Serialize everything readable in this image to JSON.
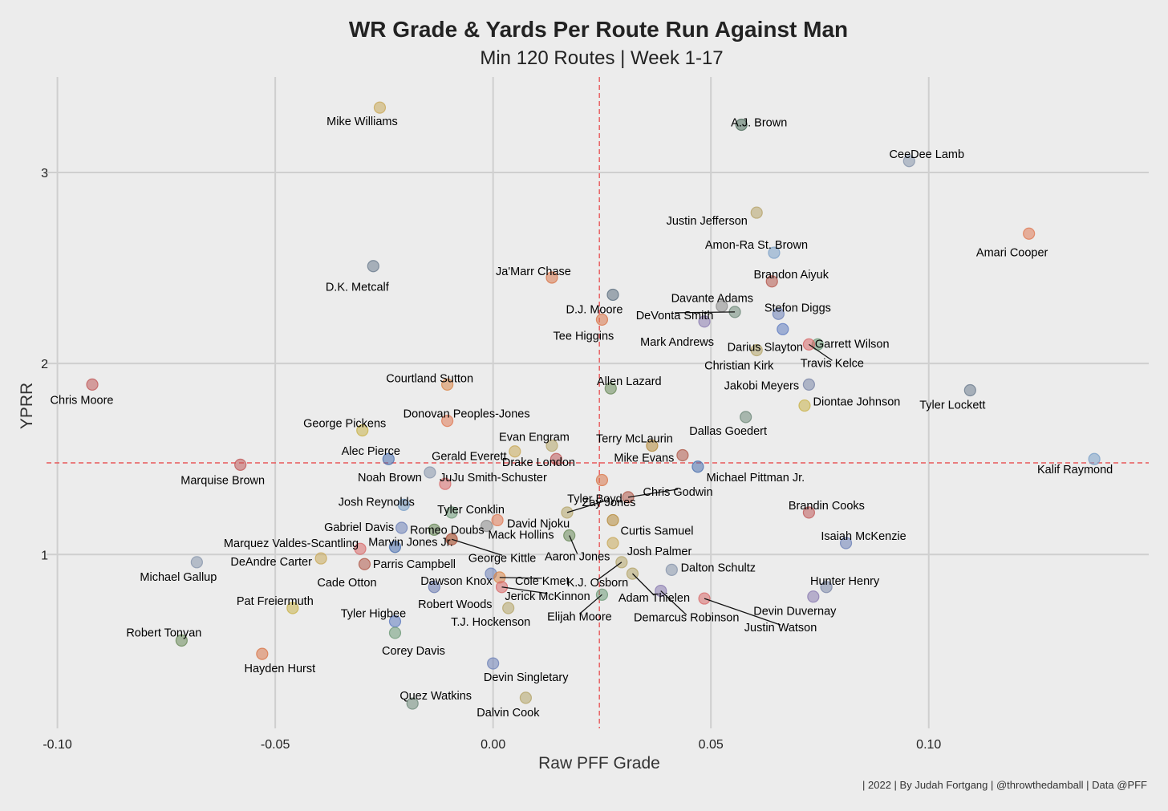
{
  "chart_data": {
    "type": "scatter",
    "title": "WR Grade & Yards Per Route Run Against Man",
    "subtitle": "Min 120 Routes | Week 1-17",
    "xlabel": "Raw PFF Grade",
    "ylabel": "YPRR",
    "caption": "| 2022 | By Judah Fortgang | @throwthedamball | Data @PFF",
    "xlim": [
      -0.1025,
      0.1505
    ],
    "ylim": [
      0.09,
      3.5
    ],
    "xticks": [
      -0.1,
      -0.05,
      0.0,
      0.05,
      0.1
    ],
    "xtick_labels": [
      "-0.10",
      "-0.05",
      "0.00",
      "0.05",
      "0.10"
    ],
    "yticks": [
      1,
      2,
      3
    ],
    "ytick_labels": [
      "1",
      "2",
      "3"
    ],
    "grid": true,
    "ref_lines": {
      "x": 0.0244,
      "y": 1.48,
      "color": "#e8585a"
    },
    "points": [
      {
        "name": "Mike Williams",
        "x": -0.026,
        "y": 3.34,
        "color": "#c9a95a"
      },
      {
        "name": "A.J. Brown",
        "x": 0.057,
        "y": 3.25,
        "color": "#4d6b5b"
      },
      {
        "name": "CeeDee Lamb",
        "x": 0.0955,
        "y": 3.06,
        "color": "#8795ab"
      },
      {
        "name": "Justin Jefferson",
        "x": 0.0605,
        "y": 2.79,
        "color": "#b7a46a"
      },
      {
        "name": "Amari Cooper",
        "x": 0.123,
        "y": 2.68,
        "color": "#e07a55"
      },
      {
        "name": "Amon-Ra St. Brown",
        "x": 0.0645,
        "y": 2.58,
        "color": "#7aa0c8"
      },
      {
        "name": "D.K. Metcalf",
        "x": -0.0275,
        "y": 2.51,
        "color": "#6d7d8f"
      },
      {
        "name": "Ja'Marr Chase",
        "x": 0.0135,
        "y": 2.45,
        "color": "#d9774a"
      },
      {
        "name": "Brandon Aiyuk",
        "x": 0.064,
        "y": 2.43,
        "color": "#b5584d"
      },
      {
        "name": "D.J. Moore",
        "x": 0.0275,
        "y": 2.36,
        "color": "#5d6f80"
      },
      {
        "name": "Davante Adams",
        "x": 0.0525,
        "y": 2.3,
        "color": "#8b8b8b"
      },
      {
        "name": "DeVonta Smith",
        "x": 0.0555,
        "y": 2.27,
        "color": "#6f8a7a"
      },
      {
        "name": "Stefon Diggs",
        "x": 0.0655,
        "y": 2.26,
        "color": "#6e82b8"
      },
      {
        "name": "Tee Higgins",
        "x": 0.025,
        "y": 2.23,
        "color": "#d9774a"
      },
      {
        "name": "Mark Andrews",
        "x": 0.0485,
        "y": 2.22,
        "color": "#8a7bb0"
      },
      {
        "name": "Darius Slayton",
        "x": 0.0665,
        "y": 2.18,
        "color": "#5f7cc0"
      },
      {
        "name": "Garrett Wilson",
        "x": 0.0745,
        "y": 2.1,
        "color": "#6e9a78"
      },
      {
        "name": "Travis Kelce",
        "x": 0.0725,
        "y": 2.1,
        "color": "#d86a6a"
      },
      {
        "name": "Christian Kirk",
        "x": 0.0605,
        "y": 2.07,
        "color": "#b5a56a"
      },
      {
        "name": "Courtland Sutton",
        "x": -0.0105,
        "y": 1.89,
        "color": "#d9874a"
      },
      {
        "name": "Chris Moore",
        "x": -0.092,
        "y": 1.89,
        "color": "#c05a5a"
      },
      {
        "name": "Jakobi Meyers",
        "x": 0.0725,
        "y": 1.89,
        "color": "#7a86a8"
      },
      {
        "name": "Allen Lazard",
        "x": 0.027,
        "y": 1.87,
        "color": "#6a8a5a"
      },
      {
        "name": "Tyler Lockett",
        "x": 0.1095,
        "y": 1.86,
        "color": "#6d7d8f"
      },
      {
        "name": "Diontae Johnson",
        "x": 0.0715,
        "y": 1.78,
        "color": "#c9b34a"
      },
      {
        "name": "Donovan Peoples-Jones",
        "x": -0.0105,
        "y": 1.7,
        "color": "#e07a55"
      },
      {
        "name": "Dallas Goedert",
        "x": 0.058,
        "y": 1.72,
        "color": "#6f8a7a"
      },
      {
        "name": "George Pickens",
        "x": -0.03,
        "y": 1.65,
        "color": "#c9b34a"
      },
      {
        "name": "Evan Engram",
        "x": 0.0135,
        "y": 1.57,
        "color": "#b5a56a"
      },
      {
        "name": "Terry McLaurin",
        "x": 0.0365,
        "y": 1.57,
        "color": "#b58a3a"
      },
      {
        "name": "Alec Pierce",
        "x": -0.024,
        "y": 1.5,
        "color": "#4a6fae"
      },
      {
        "name": "Gerald Everett",
        "x": 0.005,
        "y": 1.54,
        "color": "#c9a95a"
      },
      {
        "name": "Mike Evans",
        "x": 0.0435,
        "y": 1.52,
        "color": "#b05a4a"
      },
      {
        "name": "Drake London",
        "x": 0.0145,
        "y": 1.5,
        "color": "#c05a5a"
      },
      {
        "name": "Michael Pittman Jr.",
        "x": 0.047,
        "y": 1.46,
        "color": "#4a6fae"
      },
      {
        "name": "Kalif Raymond",
        "x": 0.138,
        "y": 1.5,
        "color": "#7aa0c8"
      },
      {
        "name": "Marquise Brown",
        "x": -0.058,
        "y": 1.47,
        "color": "#c05a5a"
      },
      {
        "name": "Noah Brown",
        "x": -0.0145,
        "y": 1.43,
        "color": "#8795ab"
      },
      {
        "name": "JuJu Smith-Schuster",
        "x": -0.011,
        "y": 1.37,
        "color": "#d86a6a"
      },
      {
        "name": "Tyler Boyd",
        "x": 0.025,
        "y": 1.39,
        "color": "#d9774a"
      },
      {
        "name": "Chris Godwin",
        "x": 0.031,
        "y": 1.3,
        "color": "#b05a4a"
      },
      {
        "name": "Josh Reynolds",
        "x": -0.0205,
        "y": 1.26,
        "color": "#7aa0c8"
      },
      {
        "name": "Brandin Cooks",
        "x": 0.0725,
        "y": 1.22,
        "color": "#c05a5a"
      },
      {
        "name": "Tyler Conklin",
        "x": -0.0095,
        "y": 1.22,
        "color": "#6e9a78"
      },
      {
        "name": "Zay Jones",
        "x": 0.017,
        "y": 1.22,
        "color": "#b5a56a"
      },
      {
        "name": "Gabriel Davis",
        "x": -0.021,
        "y": 1.14,
        "color": "#6e82b8"
      },
      {
        "name": "Romeo Doubs",
        "x": -0.0135,
        "y": 1.13,
        "color": "#6a8a5a"
      },
      {
        "name": "David Njoku",
        "x": 0.001,
        "y": 1.18,
        "color": "#e07a55"
      },
      {
        "name": "Curtis Samuel",
        "x": 0.0275,
        "y": 1.18,
        "color": "#b58a3a"
      },
      {
        "name": "Marvin Jones Jr.",
        "x": -0.0095,
        "y": 1.08,
        "color": "#b5a56a"
      },
      {
        "name": "Mack Hollins",
        "x": -0.0015,
        "y": 1.15,
        "color": "#8b8b8b"
      },
      {
        "name": "Isaiah McKenzie",
        "x": 0.081,
        "y": 1.06,
        "color": "#6e82b8"
      },
      {
        "name": "Aaron Jones",
        "x": 0.0175,
        "y": 1.1,
        "color": "#6a8a5a"
      },
      {
        "name": "Marquez Valdes-Scantling",
        "x": -0.0305,
        "y": 1.03,
        "color": "#d86a6a"
      },
      {
        "name": "DeAndre Carter",
        "x": -0.0395,
        "y": 0.98,
        "color": "#c9a95a"
      },
      {
        "name": "Parris Campbell",
        "x": -0.0225,
        "y": 1.04,
        "color": "#4a6fae"
      },
      {
        "name": "George Kittle",
        "x": -0.0095,
        "y": 1.08,
        "color": "#b5584d"
      },
      {
        "name": "Josh Palmer",
        "x": 0.0275,
        "y": 1.06,
        "color": "#c9a95a"
      },
      {
        "name": "Michael Gallup",
        "x": -0.068,
        "y": 0.96,
        "color": "#8795ab"
      },
      {
        "name": "Cade Otton",
        "x": -0.0295,
        "y": 0.95,
        "color": "#b05a4a"
      },
      {
        "name": "Dalton Schultz",
        "x": 0.041,
        "y": 0.92,
        "color": "#8795ab"
      },
      {
        "name": "Dawson Knox",
        "x": -0.0005,
        "y": 0.9,
        "color": "#6e82b8"
      },
      {
        "name": "Cole Kmet",
        "x": 0.0015,
        "y": 0.88,
        "color": "#d9874a"
      },
      {
        "name": "K.J. Osborn",
        "x": 0.0295,
        "y": 0.96,
        "color": "#b5a56a"
      },
      {
        "name": "Robert Woods",
        "x": -0.0135,
        "y": 0.83,
        "color": "#6a7ab0"
      },
      {
        "name": "Jerick McKinnon",
        "x": 0.002,
        "y": 0.83,
        "color": "#d86a6a"
      },
      {
        "name": "Adam Thielen",
        "x": 0.032,
        "y": 0.9,
        "color": "#b5a56a"
      },
      {
        "name": "Hunter Henry",
        "x": 0.0765,
        "y": 0.83,
        "color": "#7a86a8"
      },
      {
        "name": "Elijah Moore",
        "x": 0.025,
        "y": 0.79,
        "color": "#6e9a78"
      },
      {
        "name": "Demarcus Robinson",
        "x": 0.0385,
        "y": 0.81,
        "color": "#8a7bb0"
      },
      {
        "name": "Justin Watson",
        "x": 0.0485,
        "y": 0.77,
        "color": "#d86a6a"
      },
      {
        "name": "Devin Duvernay",
        "x": 0.0735,
        "y": 0.78,
        "color": "#8a7bb0"
      },
      {
        "name": "Pat Freiermuth",
        "x": -0.046,
        "y": 0.72,
        "color": "#c9b34a"
      },
      {
        "name": "T.J. Hockenson",
        "x": 0.0035,
        "y": 0.72,
        "color": "#b5a56a"
      },
      {
        "name": "Tyler Higbee",
        "x": -0.0225,
        "y": 0.65,
        "color": "#5f7cc0"
      },
      {
        "name": "Corey Davis",
        "x": -0.0225,
        "y": 0.59,
        "color": "#6e9a78"
      },
      {
        "name": "Robert Tonyan",
        "x": -0.0715,
        "y": 0.55,
        "color": "#6a8a5a"
      },
      {
        "name": "Hayden Hurst",
        "x": -0.053,
        "y": 0.48,
        "color": "#d9774a"
      },
      {
        "name": "Devin Singletary",
        "x": 0.0,
        "y": 0.43,
        "color": "#6e82b8"
      },
      {
        "name": "Quez Watkins",
        "x": -0.0185,
        "y": 0.22,
        "color": "#6f8a7a"
      },
      {
        "name": "Dalvin Cook",
        "x": 0.0075,
        "y": 0.25,
        "color": "#b5a56a"
      }
    ]
  }
}
